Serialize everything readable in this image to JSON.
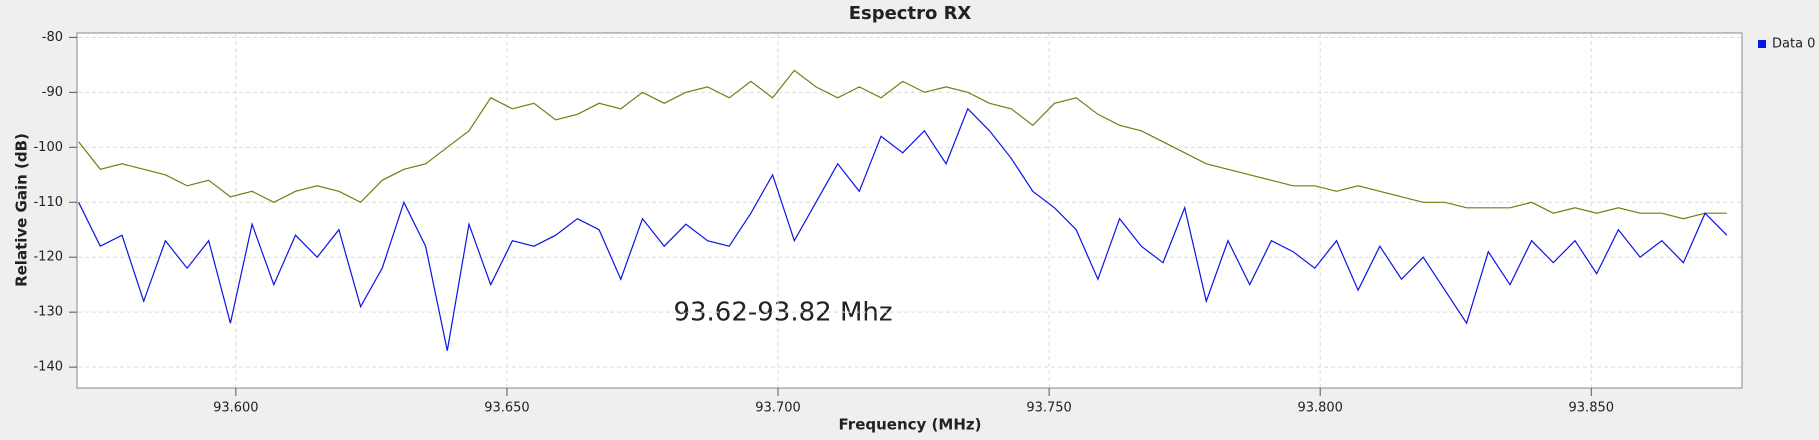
{
  "chart_data": {
    "type": "line",
    "title": "Espectro RX",
    "x_label": "Frequency (MHz)",
    "y_label": "Relative Gain (dB)",
    "annotation": "93.62-93.82 Mhz",
    "x": [
      93.571,
      93.575,
      93.579,
      93.583,
      93.587,
      93.591,
      93.595,
      93.599,
      93.603,
      93.607,
      93.611,
      93.615,
      93.619,
      93.623,
      93.627,
      93.631,
      93.635,
      93.639,
      93.643,
      93.647,
      93.651,
      93.655,
      93.659,
      93.663,
      93.667,
      93.671,
      93.675,
      93.679,
      93.683,
      93.687,
      93.691,
      93.695,
      93.699,
      93.703,
      93.707,
      93.711,
      93.715,
      93.719,
      93.723,
      93.727,
      93.731,
      93.735,
      93.739,
      93.743,
      93.747,
      93.751,
      93.755,
      93.759,
      93.763,
      93.767,
      93.771,
      93.775,
      93.779,
      93.783,
      93.787,
      93.791,
      93.795,
      93.799,
      93.803,
      93.807,
      93.811,
      93.815,
      93.819,
      93.823,
      93.827,
      93.831,
      93.835,
      93.839,
      93.843,
      93.847,
      93.851,
      93.855,
      93.859,
      93.863,
      93.867,
      93.871,
      93.875
    ],
    "series": [
      {
        "color": "#7a7a10",
        "values": [
          -99,
          -104,
          -103,
          -104,
          -105,
          -107,
          -106,
          -109,
          -108,
          -110,
          -108,
          -107,
          -108,
          -110,
          -106,
          -104,
          -103,
          -100,
          -97,
          -91,
          -93,
          -92,
          -95,
          -94,
          -92,
          -93,
          -90,
          -92,
          -90,
          -89,
          -91,
          -88,
          -91,
          -86,
          -89,
          -91,
          -89,
          -91,
          -88,
          -90,
          -89,
          -90,
          -92,
          -93,
          -96,
          -92,
          -91,
          -94,
          -96,
          -97,
          -99,
          -101,
          -103,
          -104,
          -105,
          -106,
          -107,
          -107,
          -108,
          -107,
          -108,
          -109,
          -110,
          -110,
          -111,
          -111,
          -111,
          -110,
          -112,
          -111,
          -112,
          -111,
          -112,
          -112,
          -113,
          -112,
          -112
        ]
      },
      {
        "name": "Data 0",
        "color": "#0a14e6",
        "values": [
          -110,
          -118,
          -116,
          -128,
          -117,
          -122,
          -117,
          -132,
          -114,
          -125,
          -116,
          -120,
          -115,
          -129,
          -122,
          -110,
          -118,
          -137,
          -114,
          -125,
          -117,
          -118,
          -116,
          -113,
          -115,
          -124,
          -113,
          -118,
          -114,
          -117,
          -118,
          -112,
          -105,
          -117,
          -110,
          -103,
          -108,
          -98,
          -101,
          -97,
          -103,
          -93,
          -97,
          -102,
          -108,
          -111,
          -115,
          -124,
          -113,
          -118,
          -121,
          -111,
          -128,
          -117,
          -125,
          -117,
          -119,
          -122,
          -117,
          -126,
          -118,
          -124,
          -120,
          -126,
          -132,
          -119,
          -125,
          -117,
          -121,
          -117,
          -123,
          -115,
          -120,
          -117,
          -121,
          -112,
          -116
        ]
      }
    ],
    "xlim": [
      93.5707,
      93.8778
    ],
    "ylim": [
      -143.8,
      -79.2
    ],
    "xticks": [
      {
        "value": 93.6,
        "label": "93.600"
      },
      {
        "value": 93.65,
        "label": "93.650"
      },
      {
        "value": 93.7,
        "label": "93.700"
      },
      {
        "value": 93.75,
        "label": "93.750"
      },
      {
        "value": 93.8,
        "label": "93.800"
      },
      {
        "value": 93.85,
        "label": "93.850"
      }
    ],
    "yticks": [
      -80,
      -90,
      -100,
      -110,
      -120,
      -130,
      -140
    ],
    "grid": true,
    "legend": "right"
  }
}
